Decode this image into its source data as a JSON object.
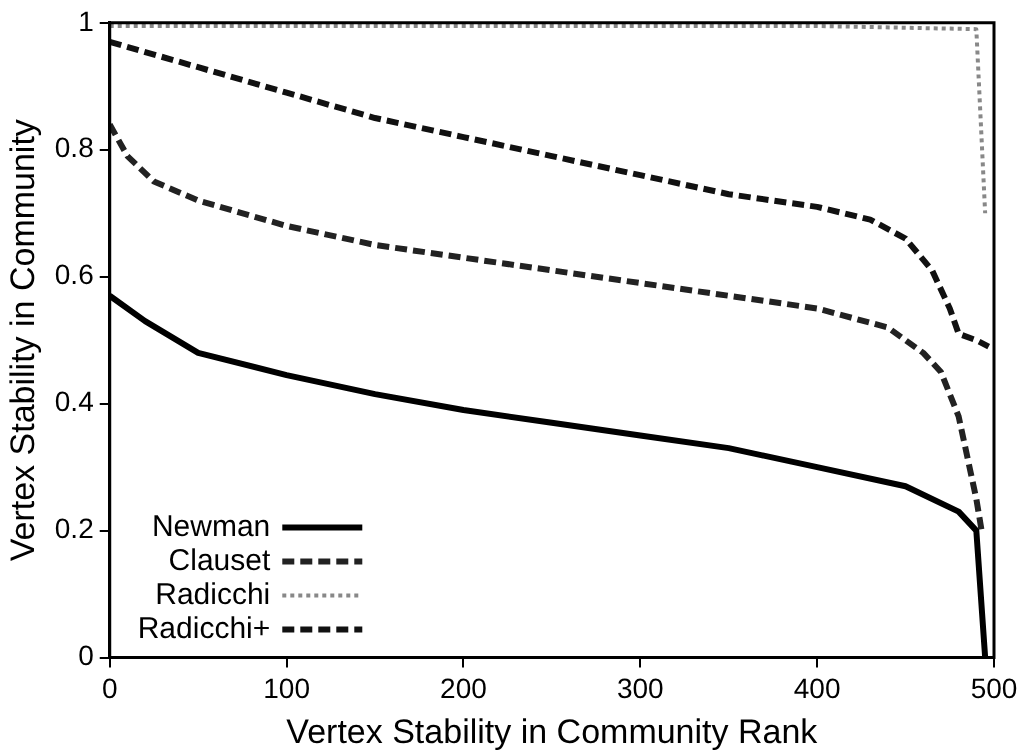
{
  "chart_data": {
    "type": "line",
    "xlabel": "Vertex Stability in Community Rank",
    "ylabel": "Vertex Stability in Community",
    "xlim": [
      0,
      500
    ],
    "xticks": [
      0,
      100,
      200,
      300,
      400,
      500
    ],
    "ylim": [
      0,
      1
    ],
    "yticks": [
      0,
      0.2,
      0.4,
      0.6,
      0.8,
      1
    ],
    "grid": false,
    "legend": "bottom left",
    "marker": "none",
    "series": [
      {
        "name": "Newman",
        "color": "#000000",
        "line_style": "solid",
        "x": [
          0,
          20,
          50,
          100,
          150,
          200,
          250,
          300,
          350,
          400,
          450,
          480,
          490,
          495
        ],
        "values": [
          0.57,
          0.53,
          0.48,
          0.445,
          0.415,
          0.39,
          0.37,
          0.35,
          0.33,
          0.3,
          0.27,
          0.23,
          0.2,
          0
        ]
      },
      {
        "name": "Clauset",
        "color": "#222222",
        "line_style": "dashed",
        "x": [
          0,
          10,
          25,
          50,
          100,
          150,
          200,
          250,
          300,
          350,
          400,
          440,
          460,
          470,
          480,
          490,
          493
        ],
        "values": [
          0.84,
          0.79,
          0.75,
          0.72,
          0.68,
          0.65,
          0.63,
          0.61,
          0.59,
          0.57,
          0.55,
          0.52,
          0.48,
          0.45,
          0.38,
          0.25,
          0.2
        ]
      },
      {
        "name": "Radicchi",
        "color": "#888888",
        "line_style": "dotted",
        "x": [
          0,
          100,
          200,
          300,
          400,
          490,
          495
        ],
        "values": [
          0.995,
          0.995,
          0.995,
          0.995,
          0.995,
          0.99,
          0.7
        ]
      },
      {
        "name": "Radicchi+",
        "color": "#111111",
        "line_style": "dashed",
        "x": [
          0,
          50,
          100,
          150,
          200,
          250,
          300,
          350,
          400,
          430,
          450,
          465,
          475,
          480,
          490,
          497
        ],
        "values": [
          0.97,
          0.93,
          0.89,
          0.85,
          0.82,
          0.79,
          0.76,
          0.73,
          0.71,
          0.69,
          0.66,
          0.61,
          0.55,
          0.51,
          0.5,
          0.49
        ]
      }
    ]
  }
}
